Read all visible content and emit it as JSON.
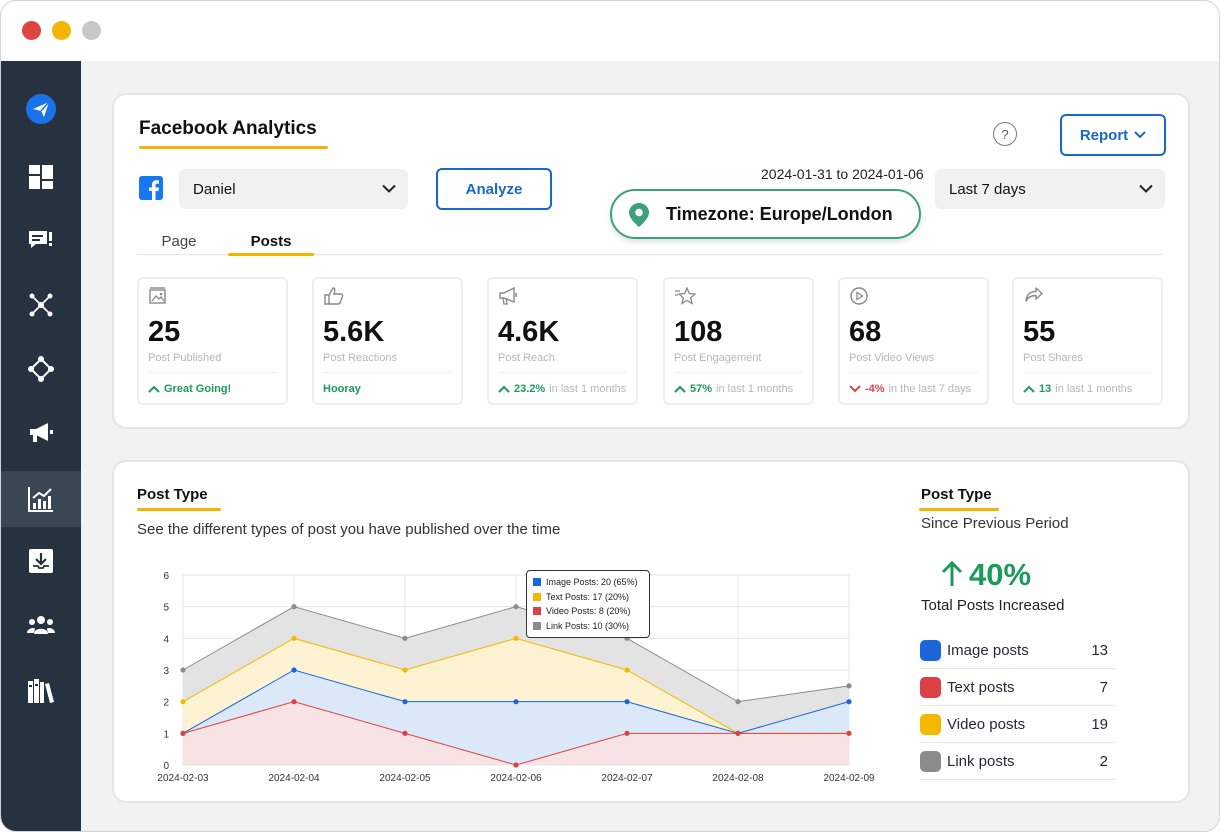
{
  "header": {
    "title": "Facebook Analytics",
    "help_icon": "?",
    "report_label": "Report"
  },
  "controls": {
    "account": "Daniel",
    "analyze_label": "Analyze",
    "date_range": "2024-01-31 to 2024-01-06",
    "period": "Last 7 days",
    "timezone": "Timezone: Europe/London"
  },
  "tabs": [
    {
      "label": "Page",
      "active": false
    },
    {
      "label": "Posts",
      "active": true
    }
  ],
  "stats": [
    {
      "icon": "image-icon",
      "value": "25",
      "label": "Post Published",
      "foot_strong": "Great Going!",
      "foot_rest": "",
      "trend": "up"
    },
    {
      "icon": "thumbs-up-icon",
      "value": "5.6K",
      "label": "Post Reactions",
      "foot_strong": "Hooray",
      "foot_rest": "",
      "trend": "none"
    },
    {
      "icon": "megaphone-icon",
      "value": "4.6K",
      "label": "Post Reach",
      "foot_strong": "23.2%",
      "foot_rest": "in last 1 months",
      "trend": "up"
    },
    {
      "icon": "star-icon",
      "value": "108",
      "label": "Post Engagement",
      "foot_strong": "57%",
      "foot_rest": "in last 1 months",
      "trend": "up"
    },
    {
      "icon": "play-icon",
      "value": "68",
      "label": "Post Video Views",
      "foot_strong": "-4%",
      "foot_rest": "in the last 7 days",
      "trend": "down"
    },
    {
      "icon": "share-icon",
      "value": "55",
      "label": "Post Shares",
      "foot_strong": "13",
      "foot_rest": "in last 1 months",
      "trend": "up"
    }
  ],
  "post_type": {
    "title": "Post Type",
    "subtitle": "See the different types of post you have published over the time"
  },
  "chart_data": {
    "type": "area",
    "x": [
      "2024-02-03",
      "2024-02-04",
      "2024-02-05",
      "2024-02-06",
      "2024-02-07",
      "2024-02-08",
      "2024-02-09"
    ],
    "ylim": [
      0,
      6
    ],
    "yticks": [
      "0",
      "1",
      "2",
      "3",
      "4",
      "5",
      "6"
    ],
    "grid": true,
    "stacked": false,
    "series": [
      {
        "key": "link",
        "color": "#8c8c8c",
        "fill": "#e3e3e3",
        "values": [
          3,
          5,
          4,
          5,
          4,
          2,
          2.5
        ]
      },
      {
        "key": "text",
        "color": "#f5b800",
        "fill": "#fdf3d3",
        "values": [
          2,
          4,
          3,
          4,
          3,
          1,
          1
        ]
      },
      {
        "key": "image",
        "color": "#1a66d8",
        "fill": "#dbe8f7",
        "values": [
          1,
          3,
          2,
          2,
          2,
          1,
          2
        ]
      },
      {
        "key": "video",
        "color": "#dc4145",
        "fill": "#f7e3e4",
        "values": [
          1,
          2,
          1,
          0,
          1,
          1,
          1
        ]
      }
    ],
    "tooltip": [
      {
        "text": "Image Posts: 20 (65%)",
        "color": "#1a66d8"
      },
      {
        "text": "Text Posts: 17 (20%)",
        "color": "#f5b800"
      },
      {
        "text": "Video Posts: 8 (20%)",
        "color": "#dc4145"
      },
      {
        "text": "Link Posts: 10 (30%)",
        "color": "#8c8c8c"
      }
    ]
  },
  "summary": {
    "title": "Post Type",
    "since": "Since Previous Period",
    "percent": "40%",
    "caption": "Total Posts Increased",
    "items": [
      {
        "label": "Image posts",
        "value": "13",
        "color": "#1a66d8"
      },
      {
        "label": "Text posts",
        "value": "7",
        "color": "#dc4145"
      },
      {
        "label": "Video posts",
        "value": "19",
        "color": "#f5b800"
      },
      {
        "label": "Link posts",
        "value": "2",
        "color": "#8c8c8c"
      }
    ]
  },
  "sidebar": {
    "items": [
      "paper-plane-icon",
      "dashboard-icon",
      "comments-icon",
      "network-icon",
      "hub-icon",
      "megaphone-icon",
      "analytics-icon",
      "inbox-download-icon",
      "team-icon",
      "library-icon"
    ],
    "active": "analytics-icon"
  }
}
